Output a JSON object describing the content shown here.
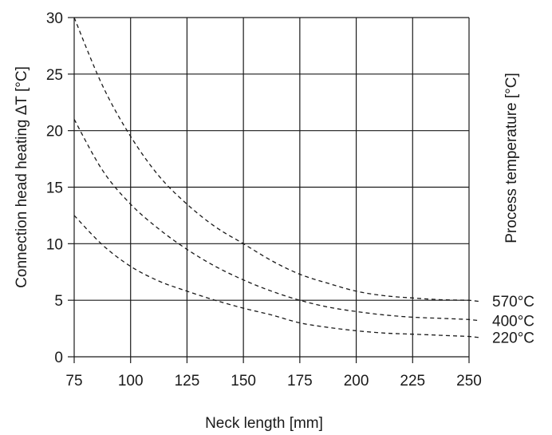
{
  "chart_data": {
    "type": "line",
    "title": "",
    "xlabel": "Neck length [mm]",
    "ylabel": "Connection head heating ΔT [°C]",
    "right_label": "Process temperature [°C]",
    "xlim": [
      75,
      250
    ],
    "ylim": [
      0,
      30
    ],
    "x_ticks": [
      "75",
      "100",
      "125",
      "150",
      "175",
      "200",
      "225",
      "250"
    ],
    "y_ticks": [
      "0",
      "5",
      "10",
      "15",
      "20",
      "25",
      "30"
    ],
    "grid": true,
    "line_style": "dashed",
    "series": [
      {
        "name": "570°C",
        "x": [
          75,
          87.5,
          100,
          112.5,
          125,
          137.5,
          150,
          162.5,
          175,
          187.5,
          200,
          212.5,
          225,
          237.5,
          250
        ],
        "values": [
          30.0,
          24.0,
          19.5,
          16.0,
          13.5,
          11.5,
          10.0,
          8.5,
          7.3,
          6.5,
          5.8,
          5.4,
          5.2,
          5.05,
          5.0
        ]
      },
      {
        "name": "400°C",
        "x": [
          75,
          87.5,
          100,
          112.5,
          125,
          137.5,
          150,
          162.5,
          175,
          187.5,
          200,
          212.5,
          225,
          237.5,
          250
        ],
        "values": [
          21.0,
          16.5,
          13.5,
          11.3,
          9.5,
          8.0,
          6.8,
          5.8,
          5.0,
          4.4,
          4.0,
          3.7,
          3.5,
          3.4,
          3.3
        ]
      },
      {
        "name": "220°C",
        "x": [
          75,
          87.5,
          100,
          112.5,
          125,
          137.5,
          150,
          162.5,
          175,
          187.5,
          200,
          212.5,
          225,
          237.5,
          250
        ],
        "values": [
          12.5,
          9.9,
          8.0,
          6.7,
          5.8,
          5.0,
          4.3,
          3.7,
          3.0,
          2.6,
          2.3,
          2.1,
          2.0,
          1.9,
          1.8
        ]
      }
    ]
  }
}
